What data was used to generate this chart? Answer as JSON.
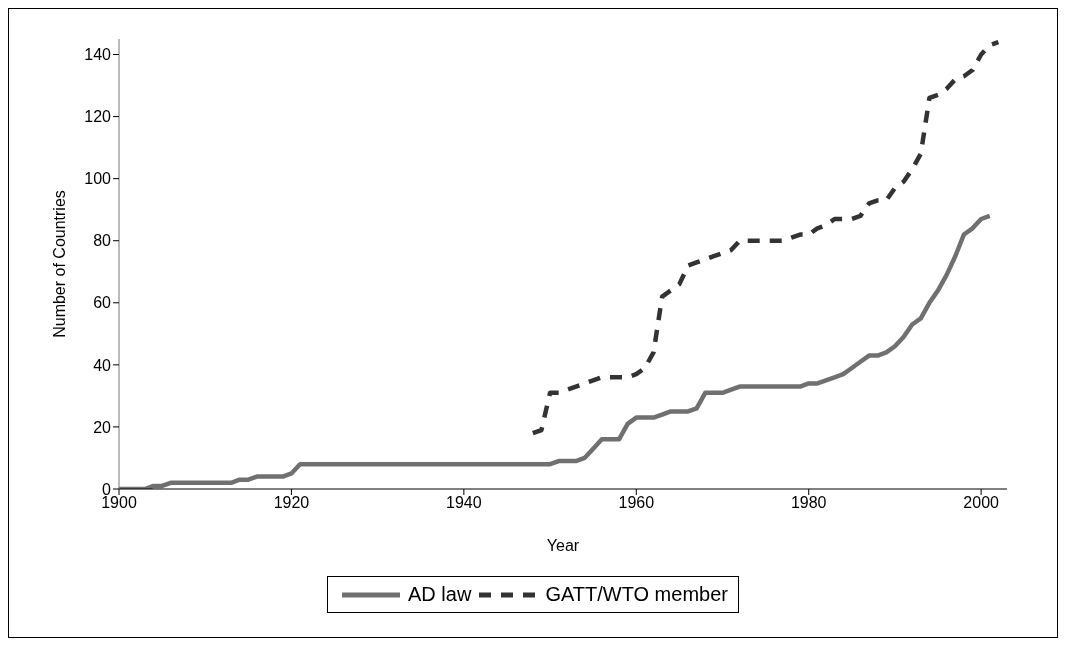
{
  "chart_data": {
    "type": "line",
    "xlabel": "Year",
    "ylabel": "Number of Countries",
    "x": [
      1900,
      1901,
      1902,
      1903,
      1904,
      1905,
      1906,
      1907,
      1908,
      1909,
      1910,
      1911,
      1912,
      1913,
      1914,
      1915,
      1916,
      1917,
      1918,
      1919,
      1920,
      1921,
      1922,
      1923,
      1924,
      1925,
      1926,
      1927,
      1928,
      1929,
      1930,
      1931,
      1932,
      1933,
      1934,
      1935,
      1936,
      1937,
      1938,
      1939,
      1940,
      1941,
      1942,
      1943,
      1944,
      1945,
      1946,
      1947,
      1948,
      1949,
      1950,
      1951,
      1952,
      1953,
      1954,
      1955,
      1956,
      1957,
      1958,
      1959,
      1960,
      1961,
      1962,
      1963,
      1964,
      1965,
      1966,
      1967,
      1968,
      1969,
      1970,
      1971,
      1972,
      1973,
      1974,
      1975,
      1976,
      1977,
      1978,
      1979,
      1980,
      1981,
      1982,
      1983,
      1984,
      1985,
      1986,
      1987,
      1988,
      1989,
      1990,
      1991,
      1992,
      1993,
      1994,
      1995,
      1996,
      1997,
      1998,
      1999,
      2000,
      2001,
      2002
    ],
    "series": [
      {
        "name": "AD law",
        "color": "#707070",
        "line_style": "solid",
        "values": [
          0,
          0,
          0,
          0,
          1,
          1,
          2,
          2,
          2,
          2,
          2,
          2,
          2,
          2,
          3,
          3,
          4,
          4,
          4,
          4,
          5,
          8,
          8,
          8,
          8,
          8,
          8,
          8,
          8,
          8,
          8,
          8,
          8,
          8,
          8,
          8,
          8,
          8,
          8,
          8,
          8,
          8,
          8,
          8,
          8,
          8,
          8,
          8,
          8,
          8,
          8,
          9,
          9,
          9,
          10,
          13,
          16,
          16,
          16,
          21,
          23,
          23,
          23,
          24,
          25,
          25,
          25,
          26,
          31,
          31,
          31,
          32,
          33,
          33,
          33,
          33,
          33,
          33,
          33,
          33,
          34,
          34,
          35,
          36,
          37,
          39,
          41,
          43,
          43,
          44,
          46,
          49,
          53,
          55,
          60,
          64,
          69,
          75,
          82,
          84,
          87,
          88,
          null
        ]
      },
      {
        "name": "GATT/WTO member",
        "color": "#333333",
        "line_style": "dashed",
        "values": [
          null,
          null,
          null,
          null,
          null,
          null,
          null,
          null,
          null,
          null,
          null,
          null,
          null,
          null,
          null,
          null,
          null,
          null,
          null,
          null,
          null,
          null,
          null,
          null,
          null,
          null,
          null,
          null,
          null,
          null,
          null,
          null,
          null,
          null,
          null,
          null,
          null,
          null,
          null,
          null,
          null,
          null,
          null,
          null,
          null,
          null,
          null,
          null,
          18,
          19,
          31,
          31,
          32,
          33,
          34,
          35,
          36,
          36,
          36,
          36,
          37,
          39,
          44,
          62,
          64,
          66,
          72,
          73,
          74,
          75,
          76,
          77,
          80,
          80,
          80,
          80,
          80,
          80,
          81,
          82,
          82,
          84,
          85,
          87,
          87,
          87,
          88,
          92,
          93,
          93,
          97,
          99,
          103,
          108,
          126,
          127,
          129,
          132,
          133,
          135,
          140,
          143,
          144
        ]
      }
    ],
    "xlim": [
      1900,
      2003
    ],
    "xticks": [
      1900,
      1920,
      1940,
      1960,
      1980,
      2000
    ],
    "ylim": [
      0,
      145
    ],
    "yticks": [
      0,
      20,
      40,
      60,
      80,
      100,
      120,
      140
    ],
    "legend": "bottom",
    "marker": "none"
  }
}
